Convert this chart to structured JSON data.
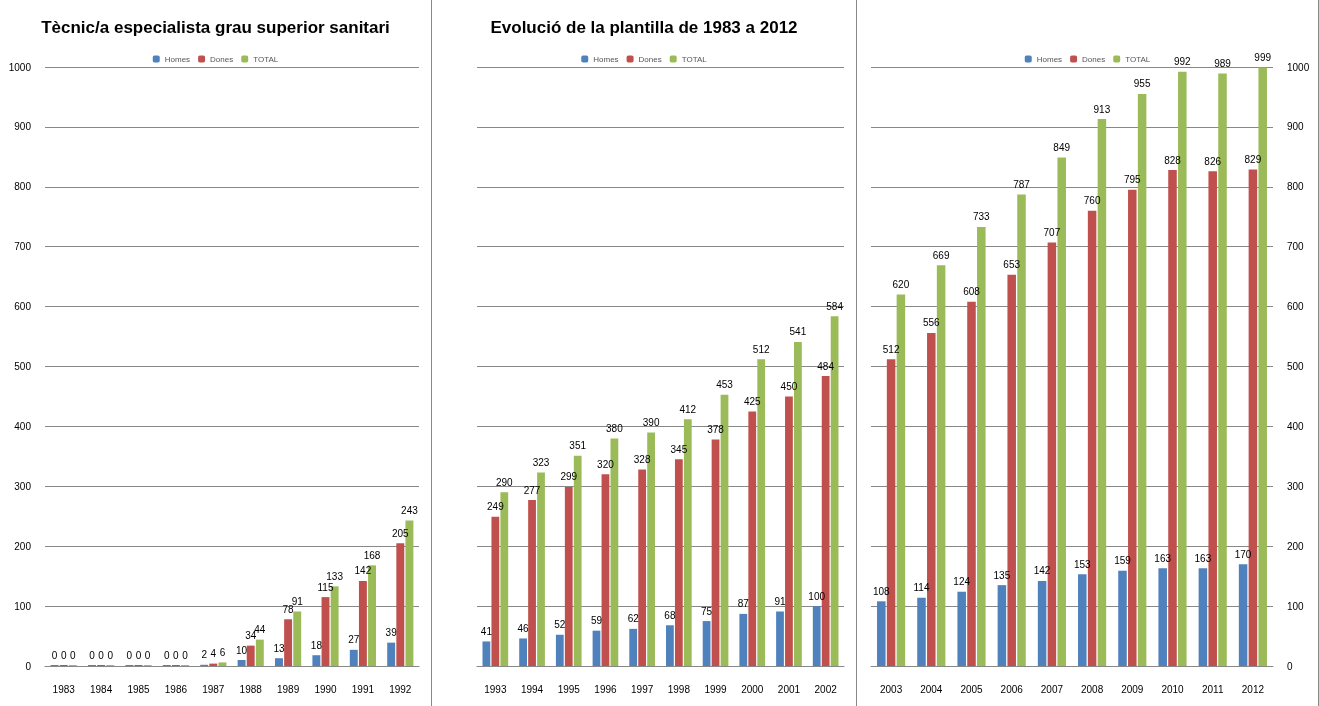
{
  "chart_data": [
    {
      "type": "bar",
      "title": "Tècnic/a especialista grau superior sanitari",
      "categories": [
        "1983",
        "1984",
        "1985",
        "1986",
        "1987",
        "1988",
        "1989",
        "1990",
        "1991",
        "1992"
      ],
      "series": [
        {
          "name": "Homes",
          "color": "#4f81bd",
          "values": [
            0,
            0,
            0,
            0,
            2,
            10,
            13,
            18,
            27,
            39
          ]
        },
        {
          "name": "Dones",
          "color": "#c0504d",
          "values": [
            0,
            0,
            0,
            0,
            4,
            34,
            78,
            115,
            142,
            205
          ]
        },
        {
          "name": "TOTAL",
          "color": "#9bbb59",
          "values": [
            0,
            0,
            0,
            0,
            6,
            44,
            91,
            133,
            168,
            243
          ]
        }
      ],
      "ylim": [
        0,
        1000
      ],
      "yticks": [
        0,
        100,
        200,
        300,
        400,
        500,
        600,
        700,
        800,
        900,
        1000
      ],
      "grid": "y",
      "legend": "top",
      "data_labels": true
    },
    {
      "type": "bar",
      "title": "Evolució de la plantilla de 1983 a 2012",
      "categories": [
        "1993",
        "1994",
        "1995",
        "1996",
        "1997",
        "1998",
        "1999",
        "2000",
        "2001",
        "2002"
      ],
      "series": [
        {
          "name": "Homes",
          "color": "#4f81bd",
          "values": [
            41,
            46,
            52,
            59,
            62,
            68,
            75,
            87,
            91,
            100
          ]
        },
        {
          "name": "Dones",
          "color": "#c0504d",
          "values": [
            249,
            277,
            299,
            320,
            328,
            345,
            378,
            425,
            450,
            484
          ]
        },
        {
          "name": "TOTAL",
          "color": "#9bbb59",
          "values": [
            290,
            323,
            351,
            380,
            390,
            412,
            453,
            512,
            541,
            584
          ]
        }
      ],
      "ylim": [
        0,
        1000
      ],
      "yticks": [
        0,
        100,
        200,
        300,
        400,
        500,
        600,
        700,
        800,
        900,
        1000
      ],
      "grid": "y",
      "legend": "top",
      "data_labels": true,
      "tick_labels": "x"
    },
    {
      "type": "bar",
      "categories": [
        "2003",
        "2004",
        "2005",
        "2006",
        "2007",
        "2008",
        "2009",
        "2010",
        "2011",
        "2012"
      ],
      "series": [
        {
          "name": "Homes",
          "color": "#4f81bd",
          "axis": "y2",
          "values": [
            108,
            114,
            124,
            135,
            142,
            153,
            159,
            163,
            163,
            170
          ]
        },
        {
          "name": "Dones",
          "color": "#c0504d",
          "axis": "y2",
          "values": [
            512,
            556,
            608,
            653,
            707,
            760,
            795,
            828,
            826,
            829
          ]
        },
        {
          "name": "TOTAL",
          "color": "#9bbb59",
          "axis": "y2",
          "values": [
            620,
            669,
            733,
            787,
            849,
            913,
            955,
            992,
            989,
            999
          ]
        }
      ],
      "y2lim": [
        0,
        1000
      ],
      "y2ticks": [
        0,
        100,
        200,
        300,
        400,
        500,
        600,
        700,
        800,
        900,
        1000
      ],
      "grid": "y",
      "legend": "top",
      "data_labels": true
    }
  ]
}
